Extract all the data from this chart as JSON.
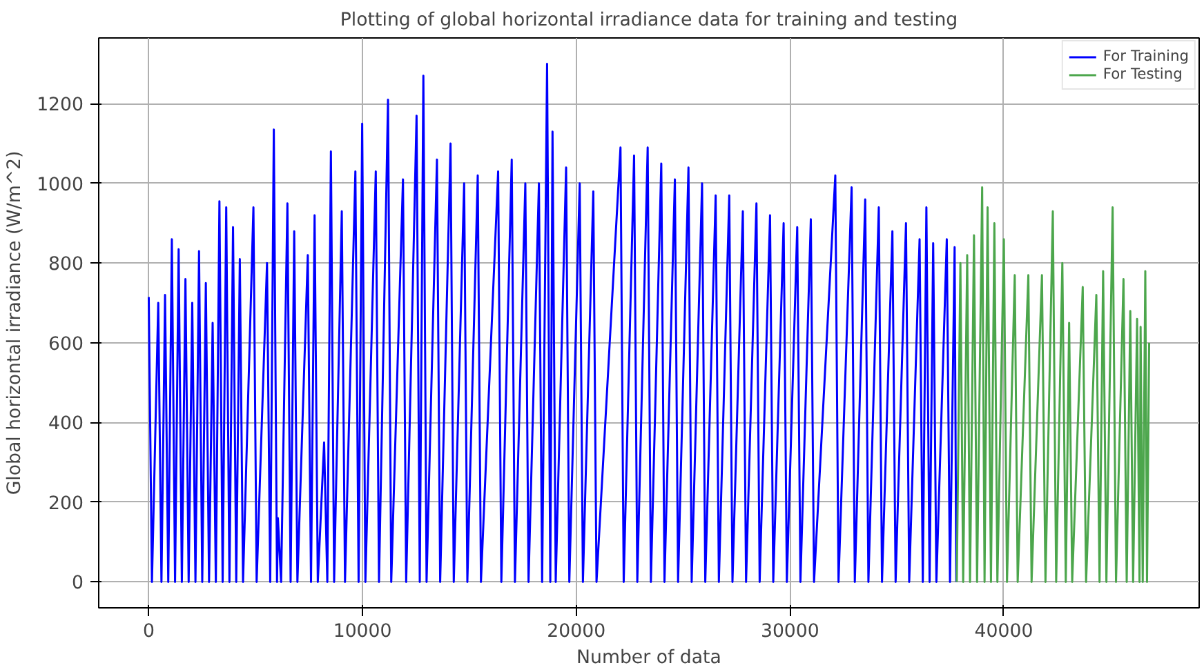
{
  "chart_data": {
    "type": "line",
    "title": "Plotting of global horizontal irradiance data for training and testing",
    "xlabel": "Number of data",
    "ylabel": "Global horizontal irradiance (W/m^2)",
    "xlim": [
      -2340,
      49140
    ],
    "ylim": [
      -65,
      1365
    ],
    "xticks": [
      0,
      10000,
      20000,
      30000,
      40000
    ],
    "yticks": [
      0,
      200,
      400,
      600,
      800,
      1000,
      1200
    ],
    "grid": true,
    "legend": "top right",
    "line_style": "solid",
    "marker": "none",
    "series": [
      {
        "name": "For Training",
        "color": "#0000ff",
        "x": [
          0,
          150,
          445,
          595,
          763,
          913,
          1081,
          1231,
          1399,
          1549,
          1717,
          1867,
          2035,
          2185,
          2353,
          2503,
          2671,
          2821,
          2989,
          3139,
          3307,
          3457,
          3625,
          3775,
          3943,
          4093,
          4261,
          4411,
          4897,
          5047,
          5533,
          5683,
          5851,
          6001,
          6042,
          6192,
          6487,
          6637,
          6805,
          6955,
          7441,
          7591,
          7759,
          7909,
          8204,
          8354,
          8522,
          8672,
          9031,
          9181,
          9667,
          9817,
          9985,
          10135,
          10621,
          10771,
          11194,
          11344,
          11893,
          12043,
          12529,
          12679,
          12847,
          12997,
          13483,
          13633,
          14119,
          14269,
          14755,
          14905,
          15391,
          15541,
          16345,
          16495,
          16981,
          17131,
          17617,
          17767,
          18253,
          18403,
          18635,
          18785,
          18889,
          19039,
          19525,
          19675,
          20161,
          20311,
          20797,
          20947,
          22069,
          22219,
          22705,
          22855,
          23341,
          23491,
          23977,
          24127,
          24613,
          24763,
          25249,
          25399,
          25885,
          26035,
          26521,
          26671,
          27157,
          27307,
          27793,
          27943,
          28429,
          28579,
          29065,
          29215,
          29701,
          29851,
          30337,
          30487,
          30973,
          31123,
          32118,
          32268,
          32881,
          33031,
          33517,
          33667,
          34153,
          34303,
          34789,
          34939,
          35425,
          35575,
          36061,
          36211,
          36379,
          36529,
          36697,
          36847,
          37333,
          37483,
          37700,
          37778
        ],
        "values": [
          715,
          0,
          700,
          0,
          720,
          0,
          860,
          0,
          835,
          0,
          760,
          0,
          700,
          0,
          830,
          0,
          750,
          0,
          650,
          0,
          955,
          0,
          940,
          0,
          890,
          0,
          810,
          0,
          940,
          0,
          800,
          0,
          1135,
          0,
          160,
          0,
          950,
          0,
          880,
          0,
          820,
          0,
          920,
          0,
          350,
          0,
          1080,
          0,
          930,
          0,
          1030,
          0,
          1150,
          0,
          1030,
          0,
          1210,
          0,
          1010,
          0,
          1170,
          0,
          1270,
          0,
          1060,
          0,
          1100,
          0,
          1000,
          0,
          1020,
          0,
          1030,
          0,
          1060,
          0,
          1000,
          0,
          1000,
          0,
          1300,
          0,
          1130,
          0,
          1040,
          0,
          1000,
          0,
          980,
          0,
          1090,
          0,
          1070,
          0,
          1090,
          0,
          1050,
          0,
          1010,
          0,
          1040,
          0,
          1000,
          0,
          970,
          0,
          970,
          0,
          930,
          0,
          950,
          0,
          920,
          0,
          900,
          0,
          890,
          0,
          910,
          0,
          1020,
          0,
          990,
          0,
          960,
          0,
          940,
          0,
          880,
          0,
          900,
          0,
          860,
          0,
          940,
          0,
          850,
          0,
          860,
          0,
          840,
          0
        ]
      },
      {
        "name": "For Testing",
        "color": "#4ca64c",
        "x": [
          37800,
          37970,
          38100,
          38288,
          38420,
          38606,
          38750,
          38988,
          39100,
          39242,
          39400,
          39560,
          39700,
          40004,
          40150,
          40513,
          40650,
          41149,
          41300,
          41785,
          41950,
          42294,
          42450,
          42739,
          42900,
          43057,
          43200,
          43693,
          43850,
          44329,
          44480,
          44647,
          44800,
          45092,
          45250,
          45600,
          45750,
          45918,
          46050,
          46236,
          46350,
          46400,
          46500,
          46620,
          46700,
          46800
        ],
        "values": [
          0,
          800,
          0,
          820,
          0,
          870,
          0,
          990,
          0,
          940,
          0,
          900,
          0,
          860,
          0,
          770,
          0,
          770,
          0,
          770,
          0,
          930,
          0,
          800,
          0,
          650,
          0,
          740,
          0,
          720,
          0,
          780,
          0,
          940,
          0,
          760,
          0,
          680,
          0,
          660,
          0,
          640,
          0,
          780,
          0,
          600
        ]
      }
    ]
  }
}
